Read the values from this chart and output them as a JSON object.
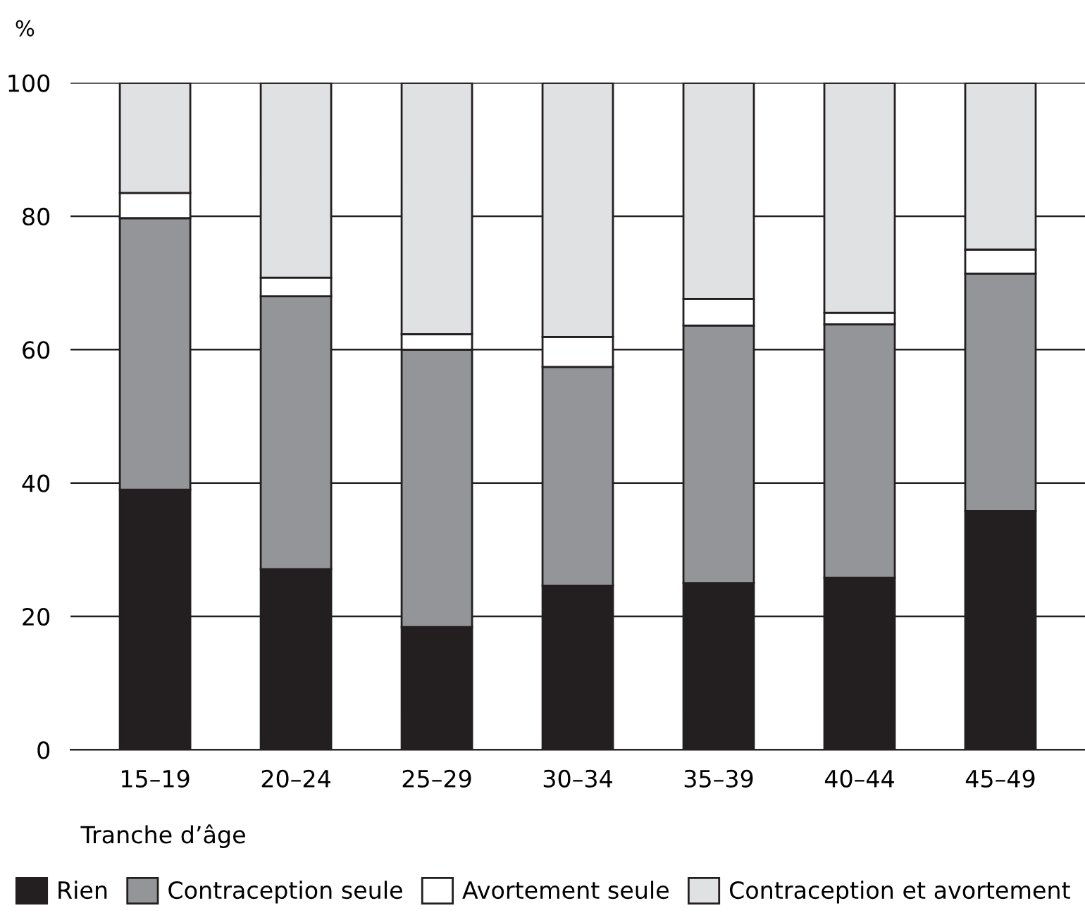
{
  "chart_data": {
    "type": "bar",
    "stacked": true,
    "ylabel": "%",
    "xlabel": "Tranche d’âge",
    "categories": [
      "15–19",
      "20–24",
      "25–29",
      "30–34",
      "35–39",
      "40–44",
      "45–49"
    ],
    "series": [
      {
        "name": "Rien",
        "color": "#231f20",
        "values": [
          39.0,
          27.1,
          18.4,
          24.6,
          25.0,
          25.8,
          35.8
        ]
      },
      {
        "name": "Contraception seule",
        "color": "#939598",
        "values": [
          40.7,
          40.9,
          41.6,
          32.8,
          38.6,
          38.0,
          35.6
        ]
      },
      {
        "name": "Avortement seule",
        "color": "#ffffff",
        "values": [
          3.8,
          2.8,
          2.3,
          4.5,
          4.0,
          1.7,
          3.6
        ]
      },
      {
        "name": "Contraception et avortement",
        "color": "#e0e1e3",
        "values": [
          16.5,
          29.2,
          37.7,
          38.1,
          32.4,
          34.5,
          25.0
        ]
      }
    ],
    "ylim": [
      0,
      100
    ],
    "yticks": [
      0,
      20,
      40,
      60,
      80,
      100
    ],
    "grid": "y",
    "legend": "bottom"
  }
}
